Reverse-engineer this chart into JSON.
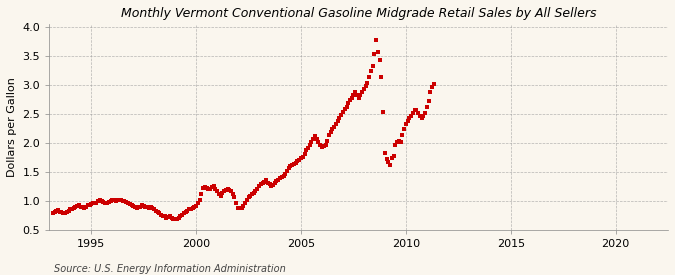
{
  "title": "Monthly Vermont Conventional Gasoline Midgrade Retail Sales by All Sellers",
  "ylabel": "Dollars per Gallon",
  "source": "Source: U.S. Energy Information Administration",
  "bg_color": "#faf6ee",
  "marker_color": "#cc0000",
  "xlim": [
    1993.0,
    2022.5
  ],
  "ylim": [
    0.5,
    4.05
  ],
  "yticks": [
    0.5,
    1.0,
    1.5,
    2.0,
    2.5,
    3.0,
    3.5,
    4.0
  ],
  "xticks": [
    1995,
    2000,
    2005,
    2010,
    2015,
    2020
  ],
  "data": [
    [
      1993.17,
      0.79
    ],
    [
      1993.25,
      0.81
    ],
    [
      1993.33,
      0.83
    ],
    [
      1993.42,
      0.84
    ],
    [
      1993.5,
      0.81
    ],
    [
      1993.58,
      0.8
    ],
    [
      1993.67,
      0.79
    ],
    [
      1993.75,
      0.79
    ],
    [
      1993.83,
      0.81
    ],
    [
      1993.92,
      0.83
    ],
    [
      1994.0,
      0.85
    ],
    [
      1994.08,
      0.86
    ],
    [
      1994.17,
      0.87
    ],
    [
      1994.25,
      0.89
    ],
    [
      1994.33,
      0.91
    ],
    [
      1994.42,
      0.92
    ],
    [
      1994.5,
      0.9
    ],
    [
      1994.58,
      0.89
    ],
    [
      1994.67,
      0.88
    ],
    [
      1994.75,
      0.9
    ],
    [
      1994.83,
      0.92
    ],
    [
      1994.92,
      0.93
    ],
    [
      1995.0,
      0.95
    ],
    [
      1995.08,
      0.96
    ],
    [
      1995.17,
      0.96
    ],
    [
      1995.25,
      0.97
    ],
    [
      1995.33,
      1.0
    ],
    [
      1995.42,
      1.01
    ],
    [
      1995.5,
      0.99
    ],
    [
      1995.58,
      0.98
    ],
    [
      1995.67,
      0.97
    ],
    [
      1995.75,
      0.96
    ],
    [
      1995.83,
      0.98
    ],
    [
      1995.92,
      0.99
    ],
    [
      1996.0,
      1.01
    ],
    [
      1996.08,
      1.02
    ],
    [
      1996.17,
      1.0
    ],
    [
      1996.25,
      1.01
    ],
    [
      1996.33,
      1.02
    ],
    [
      1996.42,
      1.01
    ],
    [
      1996.5,
      1.0
    ],
    [
      1996.58,
      0.99
    ],
    [
      1996.67,
      0.98
    ],
    [
      1996.75,
      0.96
    ],
    [
      1996.83,
      0.94
    ],
    [
      1996.92,
      0.92
    ],
    [
      1997.0,
      0.91
    ],
    [
      1997.08,
      0.89
    ],
    [
      1997.17,
      0.88
    ],
    [
      1997.25,
      0.89
    ],
    [
      1997.33,
      0.9
    ],
    [
      1997.42,
      0.92
    ],
    [
      1997.5,
      0.91
    ],
    [
      1997.58,
      0.9
    ],
    [
      1997.67,
      0.89
    ],
    [
      1997.75,
      0.88
    ],
    [
      1997.83,
      0.89
    ],
    [
      1997.92,
      0.87
    ],
    [
      1998.0,
      0.85
    ],
    [
      1998.08,
      0.83
    ],
    [
      1998.17,
      0.81
    ],
    [
      1998.25,
      0.79
    ],
    [
      1998.33,
      0.76
    ],
    [
      1998.42,
      0.74
    ],
    [
      1998.5,
      0.73
    ],
    [
      1998.58,
      0.71
    ],
    [
      1998.67,
      0.72
    ],
    [
      1998.75,
      0.73
    ],
    [
      1998.83,
      0.71
    ],
    [
      1998.92,
      0.69
    ],
    [
      1999.0,
      0.68
    ],
    [
      1999.08,
      0.69
    ],
    [
      1999.17,
      0.71
    ],
    [
      1999.25,
      0.73
    ],
    [
      1999.33,
      0.76
    ],
    [
      1999.42,
      0.79
    ],
    [
      1999.5,
      0.81
    ],
    [
      1999.58,
      0.83
    ],
    [
      1999.67,
      0.85
    ],
    [
      1999.75,
      0.86
    ],
    [
      1999.83,
      0.87
    ],
    [
      1999.92,
      0.89
    ],
    [
      2000.0,
      0.91
    ],
    [
      2000.08,
      0.96
    ],
    [
      2000.17,
      1.02
    ],
    [
      2000.25,
      1.12
    ],
    [
      2000.33,
      1.22
    ],
    [
      2000.42,
      1.24
    ],
    [
      2000.5,
      1.22
    ],
    [
      2000.58,
      1.2
    ],
    [
      2000.67,
      1.21
    ],
    [
      2000.75,
      1.24
    ],
    [
      2000.83,
      1.26
    ],
    [
      2000.92,
      1.21
    ],
    [
      2001.0,
      1.16
    ],
    [
      2001.08,
      1.11
    ],
    [
      2001.17,
      1.09
    ],
    [
      2001.25,
      1.13
    ],
    [
      2001.33,
      1.16
    ],
    [
      2001.42,
      1.19
    ],
    [
      2001.5,
      1.21
    ],
    [
      2001.58,
      1.19
    ],
    [
      2001.67,
      1.16
    ],
    [
      2001.75,
      1.11
    ],
    [
      2001.83,
      1.06
    ],
    [
      2001.92,
      0.96
    ],
    [
      2002.0,
      0.88
    ],
    [
      2002.08,
      0.87
    ],
    [
      2002.17,
      0.88
    ],
    [
      2002.25,
      0.91
    ],
    [
      2002.33,
      0.96
    ],
    [
      2002.42,
      1.01
    ],
    [
      2002.5,
      1.06
    ],
    [
      2002.58,
      1.09
    ],
    [
      2002.67,
      1.11
    ],
    [
      2002.75,
      1.13
    ],
    [
      2002.83,
      1.16
    ],
    [
      2002.92,
      1.21
    ],
    [
      2003.0,
      1.26
    ],
    [
      2003.08,
      1.29
    ],
    [
      2003.17,
      1.31
    ],
    [
      2003.25,
      1.33
    ],
    [
      2003.33,
      1.36
    ],
    [
      2003.42,
      1.31
    ],
    [
      2003.5,
      1.29
    ],
    [
      2003.58,
      1.26
    ],
    [
      2003.67,
      1.28
    ],
    [
      2003.75,
      1.31
    ],
    [
      2003.83,
      1.34
    ],
    [
      2003.92,
      1.36
    ],
    [
      2004.0,
      1.39
    ],
    [
      2004.08,
      1.41
    ],
    [
      2004.17,
      1.43
    ],
    [
      2004.25,
      1.46
    ],
    [
      2004.33,
      1.51
    ],
    [
      2004.42,
      1.57
    ],
    [
      2004.5,
      1.6
    ],
    [
      2004.58,
      1.62
    ],
    [
      2004.67,
      1.63
    ],
    [
      2004.75,
      1.66
    ],
    [
      2004.83,
      1.69
    ],
    [
      2004.92,
      1.71
    ],
    [
      2005.0,
      1.73
    ],
    [
      2005.08,
      1.76
    ],
    [
      2005.17,
      1.81
    ],
    [
      2005.25,
      1.87
    ],
    [
      2005.33,
      1.91
    ],
    [
      2005.42,
      1.97
    ],
    [
      2005.5,
      2.02
    ],
    [
      2005.58,
      2.07
    ],
    [
      2005.67,
      2.12
    ],
    [
      2005.75,
      2.07
    ],
    [
      2005.83,
      2.02
    ],
    [
      2005.92,
      1.97
    ],
    [
      2006.0,
      1.93
    ],
    [
      2006.08,
      1.95
    ],
    [
      2006.17,
      1.97
    ],
    [
      2006.25,
      2.03
    ],
    [
      2006.33,
      2.13
    ],
    [
      2006.42,
      2.18
    ],
    [
      2006.5,
      2.23
    ],
    [
      2006.58,
      2.28
    ],
    [
      2006.67,
      2.33
    ],
    [
      2006.75,
      2.38
    ],
    [
      2006.83,
      2.43
    ],
    [
      2006.92,
      2.48
    ],
    [
      2007.0,
      2.53
    ],
    [
      2007.08,
      2.58
    ],
    [
      2007.17,
      2.62
    ],
    [
      2007.25,
      2.68
    ],
    [
      2007.33,
      2.73
    ],
    [
      2007.42,
      2.78
    ],
    [
      2007.5,
      2.83
    ],
    [
      2007.58,
      2.88
    ],
    [
      2007.67,
      2.83
    ],
    [
      2007.75,
      2.78
    ],
    [
      2007.83,
      2.83
    ],
    [
      2007.92,
      2.88
    ],
    [
      2008.0,
      2.93
    ],
    [
      2008.08,
      2.98
    ],
    [
      2008.17,
      3.03
    ],
    [
      2008.25,
      3.13
    ],
    [
      2008.33,
      3.23
    ],
    [
      2008.42,
      3.33
    ],
    [
      2008.5,
      3.53
    ],
    [
      2008.58,
      3.77
    ],
    [
      2008.67,
      3.57
    ],
    [
      2008.75,
      3.43
    ],
    [
      2008.83,
      3.13
    ],
    [
      2008.92,
      2.53
    ],
    [
      2009.0,
      1.82
    ],
    [
      2009.08,
      1.72
    ],
    [
      2009.17,
      1.67
    ],
    [
      2009.25,
      1.62
    ],
    [
      2009.33,
      1.73
    ],
    [
      2009.42,
      1.78
    ],
    [
      2009.5,
      1.97
    ],
    [
      2009.58,
      2.02
    ],
    [
      2009.67,
      2.03
    ],
    [
      2009.75,
      2.02
    ],
    [
      2009.83,
      2.13
    ],
    [
      2009.92,
      2.23
    ],
    [
      2010.0,
      2.32
    ],
    [
      2010.08,
      2.37
    ],
    [
      2010.17,
      2.42
    ],
    [
      2010.25,
      2.47
    ],
    [
      2010.33,
      2.52
    ],
    [
      2010.42,
      2.57
    ],
    [
      2010.5,
      2.57
    ],
    [
      2010.58,
      2.52
    ],
    [
      2010.67,
      2.47
    ],
    [
      2010.75,
      2.42
    ],
    [
      2010.83,
      2.47
    ],
    [
      2010.92,
      2.52
    ],
    [
      2011.0,
      2.62
    ],
    [
      2011.08,
      2.72
    ],
    [
      2011.17,
      2.87
    ],
    [
      2011.25,
      2.97
    ],
    [
      2011.33,
      3.02
    ]
  ]
}
